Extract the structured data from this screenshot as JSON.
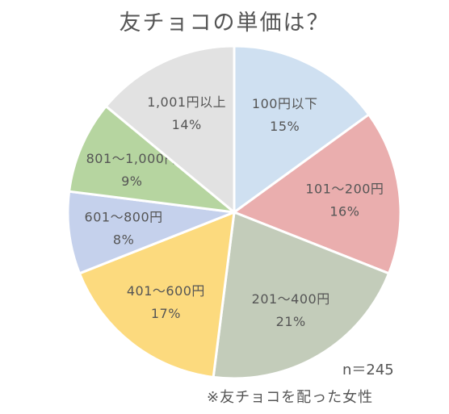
{
  "chart_data": {
    "type": "pie",
    "title": "友チョコの単価は？",
    "slices": [
      {
        "label": "100円以下",
        "value": 15,
        "value_label": "15%",
        "color": "#cfe0f1"
      },
      {
        "label": "101～200円",
        "value": 16,
        "value_label": "16%",
        "color": "#eaaeae"
      },
      {
        "label": "201～400円",
        "value": 21,
        "value_label": "21%",
        "color": "#c3ccba"
      },
      {
        "label": "401～600円",
        "value": 17,
        "value_label": "17%",
        "color": "#fcda7e"
      },
      {
        "label": "601～800円",
        "value": 8,
        "value_label": "8%",
        "color": "#c5d1ec"
      },
      {
        "label": "801～1,000円",
        "value": 9,
        "value_label": "9%",
        "color": "#b6d5a0"
      },
      {
        "label": "1,001円以上",
        "value": 14,
        "value_label": "14%",
        "color": "#e2e2e2"
      }
    ],
    "sample_size": "n＝245",
    "footnote": "※友チョコを配った女性"
  }
}
